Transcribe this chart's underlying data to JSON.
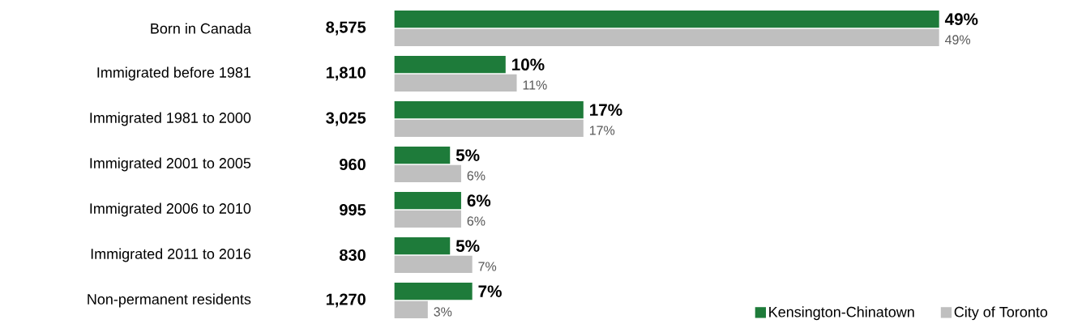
{
  "chart_data": {
    "type": "bar",
    "orientation": "horizontal",
    "categories": [
      "Born in Canada",
      "Immigrated before 1981",
      "Immigrated 1981 to 2000",
      "Immigrated 2001 to 2005",
      "Immigrated 2006 to 2010",
      "Immigrated 2011 to 2016",
      "Non-permanent residents"
    ],
    "series": [
      {
        "name": "Kensington-Chinatown",
        "color": "#1e7b3a",
        "values": [
          49,
          10,
          17,
          5,
          6,
          5,
          7
        ],
        "value_labels": [
          "49%",
          "10%",
          "17%",
          "5%",
          "6%",
          "5%",
          "7%"
        ]
      },
      {
        "name": "City of Toronto",
        "color": "#bfbfbf",
        "values": [
          49,
          11,
          17,
          6,
          6,
          7,
          3
        ],
        "value_labels": [
          "49%",
          "11%",
          "17%",
          "6%",
          "6%",
          "7%",
          "3%"
        ]
      }
    ],
    "annotations": [
      "8,575",
      "1,810",
      "3,025",
      "960",
      "995",
      "830",
      "1,270"
    ],
    "legend": "bottom right"
  }
}
